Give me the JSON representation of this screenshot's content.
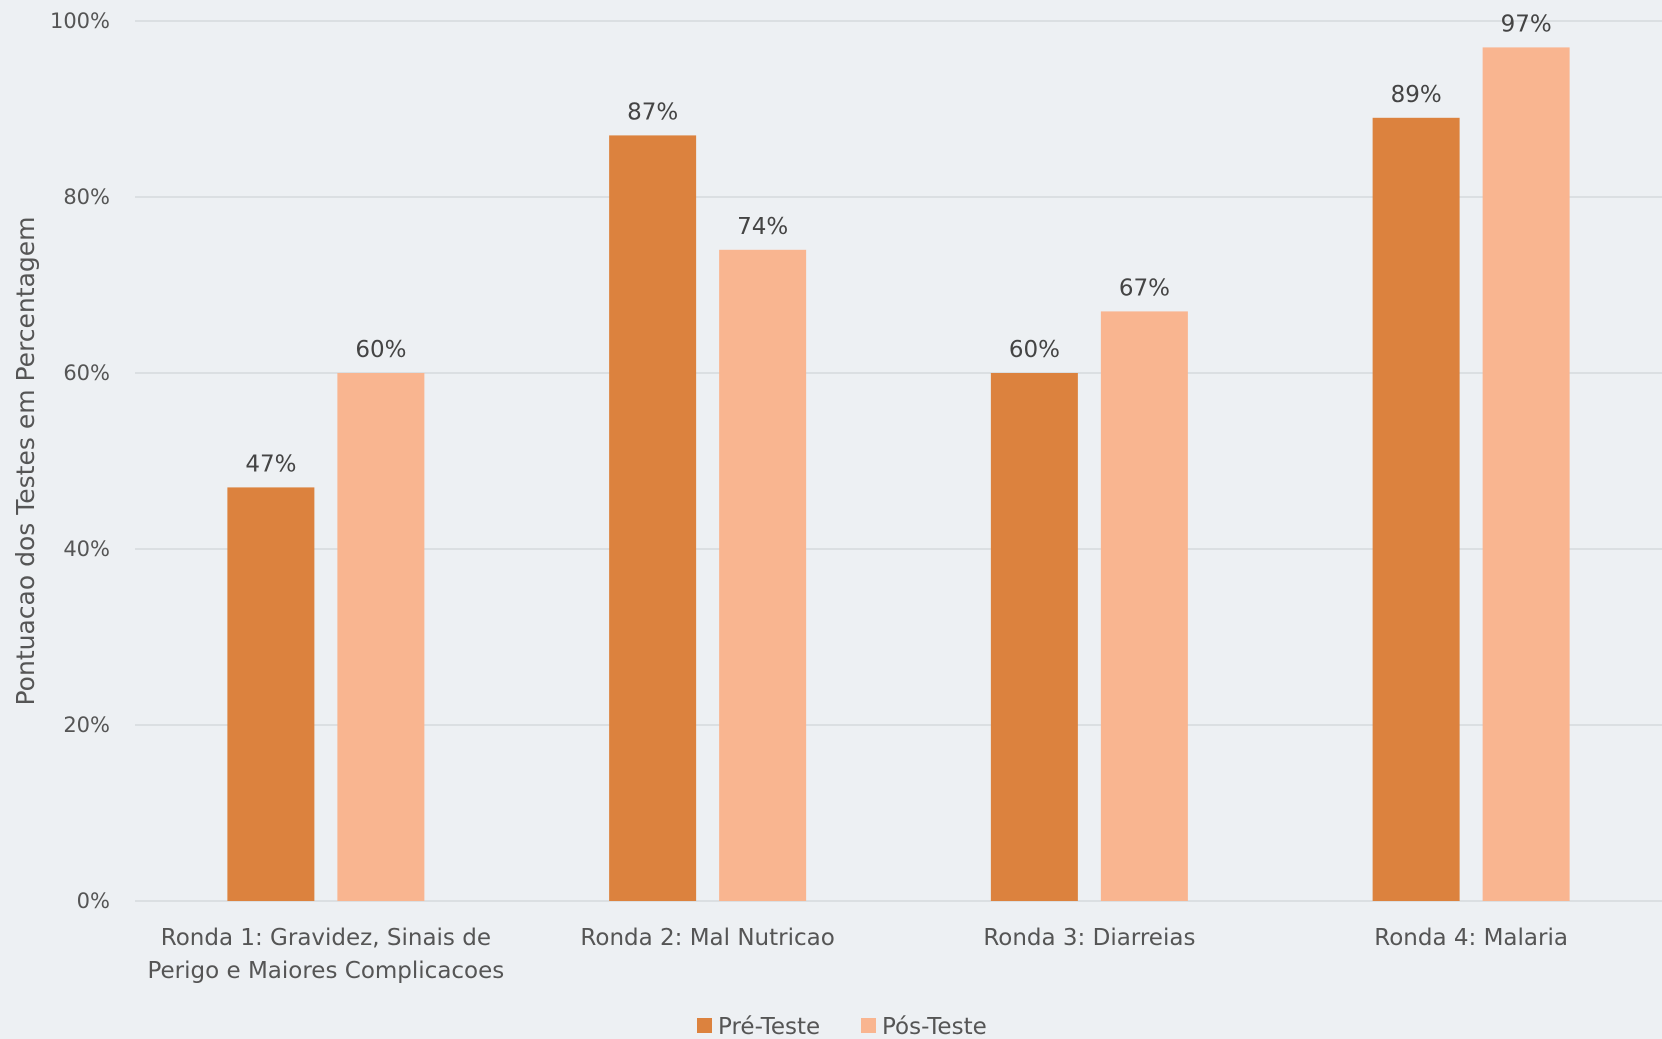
{
  "chart_data": {
    "type": "bar",
    "title": "",
    "xlabel": "",
    "ylabel": "Pontuacao dos Testes em Percentagem",
    "ylim": [
      0,
      100
    ],
    "yticks": [
      0,
      20,
      40,
      60,
      80,
      100
    ],
    "ytick_labels": [
      "0%",
      "20%",
      "40%",
      "60%",
      "80%",
      "100%"
    ],
    "grid": true,
    "legend_position": "bottom",
    "categories": [
      [
        "Ronda 1: Gravidez, Sinais de",
        "Perigo e Maiores Complicacoes"
      ],
      [
        "Ronda 2: Mal Nutricao"
      ],
      [
        "Ronda 3: Diarreias"
      ],
      [
        "Ronda 4: Malaria"
      ]
    ],
    "series": [
      {
        "name": "Pré-Teste",
        "color": "#dc823e",
        "values": [
          47,
          87,
          60,
          89
        ],
        "labels": [
          "47%",
          "87%",
          "60%",
          "89%"
        ]
      },
      {
        "name": "Pós-Teste",
        "color": "#f9b590",
        "values": [
          60,
          74,
          67,
          97
        ],
        "labels": [
          "60%",
          "74%",
          "67%",
          "97%"
        ]
      }
    ]
  }
}
